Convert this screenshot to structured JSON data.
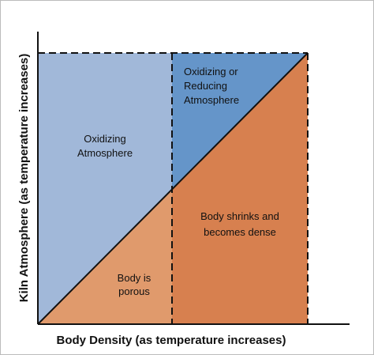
{
  "regions": [
    {
      "lines": [
        "Oxidizing",
        "Atmosphere"
      ]
    },
    {
      "lines": [
        "Oxidizing or",
        "Reducing",
        "Atmosphere"
      ]
    },
    {
      "lines": [
        "Body shrinks and",
        "becomes dense"
      ]
    },
    {
      "lines": [
        "Body is",
        "porous"
      ]
    }
  ],
  "x_axis_label": "Body Density (as temperature increases)",
  "y_axis_label": "Kiln Atmosphere (as temperature increases)"
}
